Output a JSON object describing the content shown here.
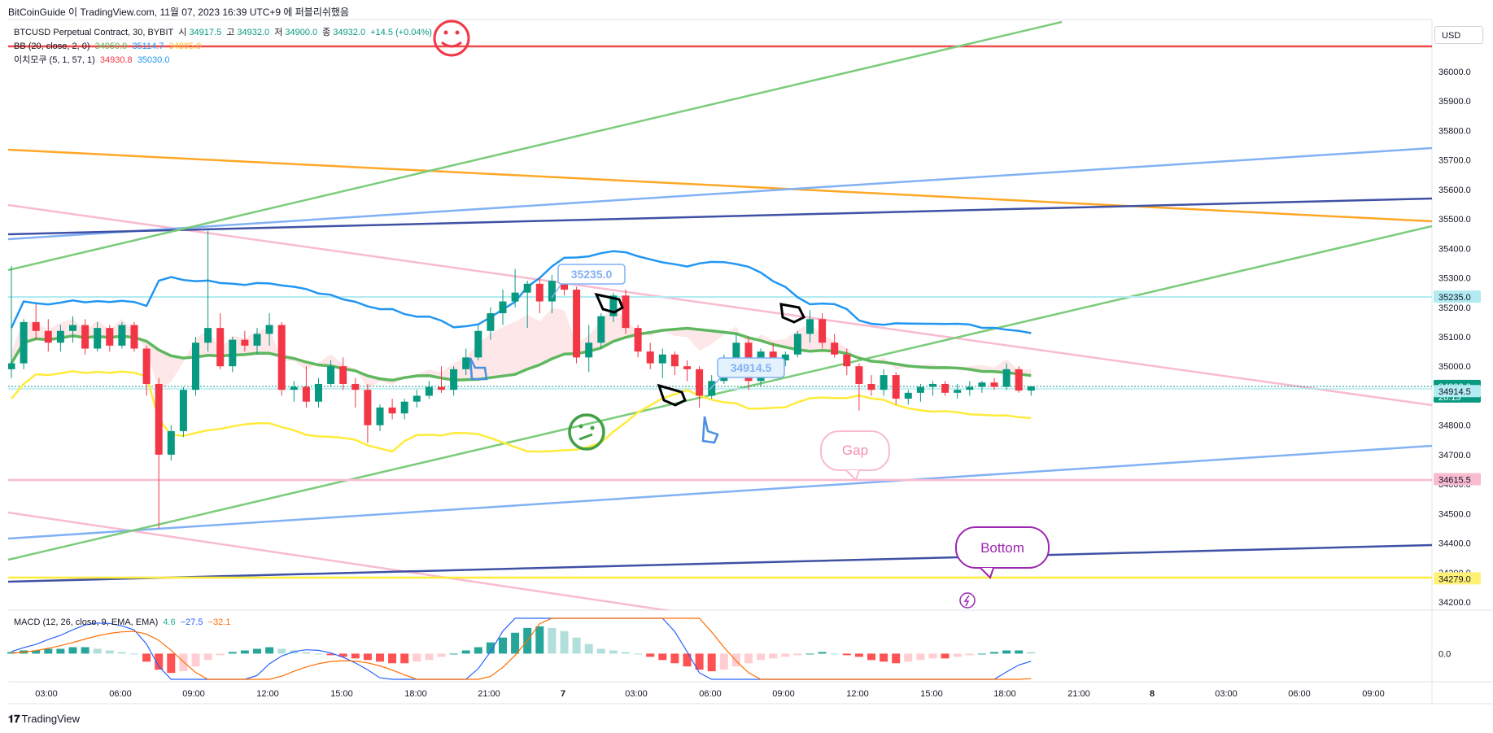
{
  "header": {
    "caption": "BitCoinGuide 이 TradingView.com, 11월 07, 2023 16:39 UTC+9 에 퍼블리쉬했음"
  },
  "currency": "USD",
  "legend": {
    "symbol": "BTCUSD Perpetual Contract, 30, BYBIT",
    "open_label": "시",
    "open": "34917.5",
    "high_label": "고",
    "high": "34932.0",
    "low_label": "저",
    "low": "34900.0",
    "close_label": "종",
    "close": "34932.0",
    "change": "+14.5 (+0.04%)",
    "bb_label": "BB (20, close, 2, 0)",
    "bb_values": [
      "34959.9",
      "35114.7",
      "34805.0"
    ],
    "ichimoku_label": "이치모쿠 (5, 1, 57, 1)",
    "ichimoku_values": [
      "34930.8",
      "35030.0"
    ],
    "macd_label": "MACD (12, 26, close, 9, EMA, EMA)",
    "macd_values": [
      "4.6",
      "−27.5",
      "−32.1"
    ]
  },
  "footer": {
    "logo_text": "TradingView"
  },
  "annotations": {
    "price_callout_1": "35235.0",
    "price_callout_2": "34914.5",
    "gap_bubble": "Gap",
    "bottom_bubble": "Bottom"
  },
  "colors": {
    "up": "#089981",
    "down": "#f23645",
    "bb_basis": "#5fb85f",
    "bb_upper": "#2196f3",
    "bb_lower": "#ffeb3b",
    "macd_line": "#2962ff",
    "signal_line": "#ff6d00",
    "red_line": "#f04a4a",
    "orange_line": "#ffa726",
    "pink_line": "#f8bbd0",
    "light_blue_line": "#82b1f5",
    "navy_line": "#3f51a5",
    "green_line": "#7ccc7c",
    "yellow_line": "#ffeb3b"
  },
  "chart_data": {
    "type": "candlestick",
    "price_scale": {
      "ylim": [
        34180,
        36080
      ],
      "ticks": [
        "36000.0",
        "35900.0",
        "35800.0",
        "35700.0",
        "35600.0",
        "35500.0",
        "35400.0",
        "35300.0",
        "35200.0",
        "35100.0",
        "35000.0",
        "34900.0",
        "34800.0",
        "34700.0",
        "34600.0",
        "34500.0",
        "34400.0",
        "34300.0",
        "34200.0"
      ]
    },
    "price_tags": [
      {
        "label": "35235.0",
        "value": 35235.0,
        "color": "#b2ebf2",
        "text_color": "#131722"
      },
      {
        "label": "34932.0",
        "value": 34932.0,
        "color": "#089981",
        "text_color": "#ffffff",
        "sub": "20:13"
      },
      {
        "label": "34914.5",
        "value": 34914.5,
        "color": "#b2ebf2",
        "text_color": "#131722"
      },
      {
        "label": "34615.5",
        "value": 34615.5,
        "color": "#f8bbd0",
        "text_color": "#131722"
      },
      {
        "label": "34279.0",
        "value": 34279.0,
        "color": "#fff176",
        "text_color": "#131722"
      }
    ],
    "time_axis": [
      "03:00",
      "06:00",
      "09:00",
      "12:00",
      "15:00",
      "18:00",
      "21:00",
      "7",
      "03:00",
      "06:00",
      "09:00",
      "12:00",
      "15:00",
      "18:00",
      "21:00",
      "8",
      "03:00",
      "06:00",
      "09:00"
    ],
    "candles": [
      {
        "o": 34990,
        "h": 35340,
        "l": 34960,
        "c": 35010
      },
      {
        "o": 35010,
        "h": 35160,
        "l": 34990,
        "c": 35150
      },
      {
        "o": 35150,
        "h": 35210,
        "l": 35090,
        "c": 35120
      },
      {
        "o": 35120,
        "h": 35160,
        "l": 35050,
        "c": 35080
      },
      {
        "o": 35080,
        "h": 35140,
        "l": 35050,
        "c": 35120
      },
      {
        "o": 35120,
        "h": 35170,
        "l": 35080,
        "c": 35140
      },
      {
        "o": 35140,
        "h": 35160,
        "l": 35040,
        "c": 35060
      },
      {
        "o": 35060,
        "h": 35150,
        "l": 35050,
        "c": 35130
      },
      {
        "o": 35130,
        "h": 35140,
        "l": 35050,
        "c": 35070
      },
      {
        "o": 35070,
        "h": 35150,
        "l": 35060,
        "c": 35140
      },
      {
        "o": 35140,
        "h": 35150,
        "l": 35050,
        "c": 35060
      },
      {
        "o": 35060,
        "h": 35070,
        "l": 34900,
        "c": 34940
      },
      {
        "o": 34940,
        "h": 34960,
        "l": 34450,
        "c": 34700
      },
      {
        "o": 34700,
        "h": 34800,
        "l": 34680,
        "c": 34780
      },
      {
        "o": 34780,
        "h": 34930,
        "l": 34760,
        "c": 34920
      },
      {
        "o": 34920,
        "h": 35100,
        "l": 34900,
        "c": 35080
      },
      {
        "o": 35080,
        "h": 35460,
        "l": 35050,
        "c": 35130
      },
      {
        "o": 35130,
        "h": 35180,
        "l": 34990,
        "c": 35000
      },
      {
        "o": 35000,
        "h": 35100,
        "l": 34980,
        "c": 35090
      },
      {
        "o": 35090,
        "h": 35120,
        "l": 35050,
        "c": 35070
      },
      {
        "o": 35070,
        "h": 35130,
        "l": 35040,
        "c": 35110
      },
      {
        "o": 35110,
        "h": 35180,
        "l": 35070,
        "c": 35140
      },
      {
        "o": 35140,
        "h": 35150,
        "l": 34900,
        "c": 34920
      },
      {
        "o": 34920,
        "h": 34950,
        "l": 34880,
        "c": 34930
      },
      {
        "o": 34930,
        "h": 35000,
        "l": 34860,
        "c": 34880
      },
      {
        "o": 34880,
        "h": 34960,
        "l": 34860,
        "c": 34940
      },
      {
        "o": 34940,
        "h": 35020,
        "l": 34930,
        "c": 35000
      },
      {
        "o": 35000,
        "h": 35030,
        "l": 34920,
        "c": 34940
      },
      {
        "o": 34940,
        "h": 34960,
        "l": 34860,
        "c": 34920
      },
      {
        "o": 34920,
        "h": 34940,
        "l": 34740,
        "c": 34800
      },
      {
        "o": 34800,
        "h": 34870,
        "l": 34780,
        "c": 34860
      },
      {
        "o": 34860,
        "h": 34890,
        "l": 34820,
        "c": 34840
      },
      {
        "o": 34840,
        "h": 34890,
        "l": 34820,
        "c": 34880
      },
      {
        "o": 34880,
        "h": 34920,
        "l": 34860,
        "c": 34900
      },
      {
        "o": 34900,
        "h": 34950,
        "l": 34890,
        "c": 34930
      },
      {
        "o": 34930,
        "h": 35000,
        "l": 34910,
        "c": 34920
      },
      {
        "o": 34920,
        "h": 35000,
        "l": 34900,
        "c": 34990
      },
      {
        "o": 34990,
        "h": 35060,
        "l": 34970,
        "c": 35030
      },
      {
        "o": 35030,
        "h": 35140,
        "l": 35020,
        "c": 35120
      },
      {
        "o": 35120,
        "h": 35200,
        "l": 35090,
        "c": 35180
      },
      {
        "o": 35180,
        "h": 35260,
        "l": 35140,
        "c": 35220
      },
      {
        "o": 35220,
        "h": 35330,
        "l": 35200,
        "c": 35250
      },
      {
        "o": 35250,
        "h": 35290,
        "l": 35130,
        "c": 35280
      },
      {
        "o": 35280,
        "h": 35300,
        "l": 35180,
        "c": 35220
      },
      {
        "o": 35220,
        "h": 35310,
        "l": 35180,
        "c": 35290
      },
      {
        "o": 35290,
        "h": 35300,
        "l": 35240,
        "c": 35260
      },
      {
        "o": 35260,
        "h": 35270,
        "l": 35010,
        "c": 35030
      },
      {
        "o": 35030,
        "h": 35140,
        "l": 34980,
        "c": 35080
      },
      {
        "o": 35080,
        "h": 35180,
        "l": 35060,
        "c": 35170
      },
      {
        "o": 35170,
        "h": 35250,
        "l": 35150,
        "c": 35240
      },
      {
        "o": 35240,
        "h": 35260,
        "l": 35110,
        "c": 35130
      },
      {
        "o": 35130,
        "h": 35140,
        "l": 35030,
        "c": 35050
      },
      {
        "o": 35050,
        "h": 35080,
        "l": 34990,
        "c": 35010
      },
      {
        "o": 35010,
        "h": 35060,
        "l": 34960,
        "c": 35040
      },
      {
        "o": 35040,
        "h": 35050,
        "l": 34970,
        "c": 35000
      },
      {
        "o": 35000,
        "h": 35020,
        "l": 34950,
        "c": 34990
      },
      {
        "o": 34990,
        "h": 35000,
        "l": 34860,
        "c": 34900
      },
      {
        "o": 34900,
        "h": 34970,
        "l": 34890,
        "c": 34950
      },
      {
        "o": 34950,
        "h": 35040,
        "l": 34940,
        "c": 35020
      },
      {
        "o": 35020,
        "h": 35110,
        "l": 35000,
        "c": 35080
      },
      {
        "o": 35080,
        "h": 35100,
        "l": 34920,
        "c": 34950
      },
      {
        "o": 34950,
        "h": 35060,
        "l": 34930,
        "c": 35050
      },
      {
        "o": 35050,
        "h": 35080,
        "l": 34960,
        "c": 35020
      },
      {
        "o": 35020,
        "h": 35050,
        "l": 35000,
        "c": 35040
      },
      {
        "o": 35040,
        "h": 35120,
        "l": 35030,
        "c": 35110
      },
      {
        "o": 35110,
        "h": 35190,
        "l": 35080,
        "c": 35160
      },
      {
        "o": 35160,
        "h": 35180,
        "l": 35060,
        "c": 35080
      },
      {
        "o": 35080,
        "h": 35110,
        "l": 35030,
        "c": 35040
      },
      {
        "o": 35040,
        "h": 35060,
        "l": 34970,
        "c": 35000
      },
      {
        "o": 35000,
        "h": 35010,
        "l": 34850,
        "c": 34940
      },
      {
        "o": 34940,
        "h": 34970,
        "l": 34900,
        "c": 34920
      },
      {
        "o": 34920,
        "h": 34990,
        "l": 34900,
        "c": 34970
      },
      {
        "o": 34970,
        "h": 34980,
        "l": 34870,
        "c": 34890
      },
      {
        "o": 34890,
        "h": 34920,
        "l": 34870,
        "c": 34910
      },
      {
        "o": 34910,
        "h": 34940,
        "l": 34880,
        "c": 34930
      },
      {
        "o": 34930,
        "h": 34950,
        "l": 34900,
        "c": 34940
      },
      {
        "o": 34940,
        "h": 34950,
        "l": 34900,
        "c": 34910
      },
      {
        "o": 34910,
        "h": 34940,
        "l": 34890,
        "c": 34920
      },
      {
        "o": 34920,
        "h": 34950,
        "l": 34900,
        "c": 34930
      },
      {
        "o": 34930,
        "h": 34950,
        "l": 34910,
        "c": 34945
      },
      {
        "o": 34945,
        "h": 34960,
        "l": 34920,
        "c": 34930
      },
      {
        "o": 34930,
        "h": 35010,
        "l": 34920,
        "c": 34990
      },
      {
        "o": 34990,
        "h": 35000,
        "l": 34910,
        "c": 34917.5
      },
      {
        "o": 34917.5,
        "h": 34932,
        "l": 34900,
        "c": 34932
      }
    ],
    "macd_axis_tick": "0.0",
    "macd_hist": [
      1,
      2,
      2,
      3,
      3,
      4,
      4,
      3,
      2,
      1,
      0,
      -5,
      -10,
      -12,
      -11,
      -8,
      -4,
      -1,
      1,
      2,
      3,
      4,
      3,
      2,
      1,
      0,
      -1,
      -2,
      -3,
      -4,
      -5,
      -6,
      -6,
      -5,
      -4,
      -2,
      0,
      2,
      4,
      7,
      10,
      13,
      16,
      17,
      16,
      14,
      10,
      6,
      3,
      2,
      1,
      0,
      -2,
      -4,
      -6,
      -8,
      -10,
      -11,
      -10,
      -8,
      -6,
      -4,
      -3,
      -2,
      -1,
      0,
      1,
      0,
      -1,
      -2,
      -4,
      -5,
      -6,
      -5,
      -4,
      -3,
      -3,
      -2,
      -1,
      0,
      1,
      2,
      2,
      1
    ],
    "macd_ylim": [
      -16,
      22
    ]
  }
}
